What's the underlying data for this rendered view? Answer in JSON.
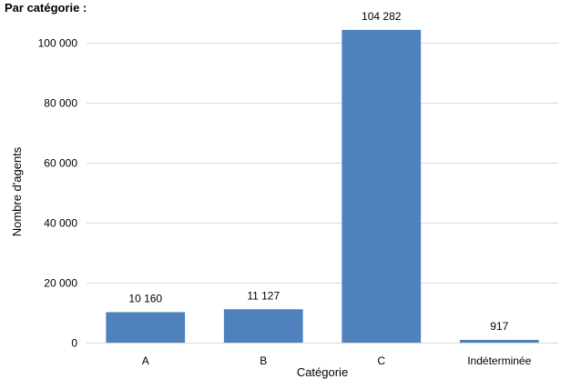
{
  "chart_data": {
    "type": "bar",
    "title": "Par catégorie :",
    "xlabel": "Catégorie",
    "ylabel": "Nombre d'agents",
    "categories": [
      "A",
      "B",
      "C",
      "Indéterminée"
    ],
    "values": [
      10160,
      11127,
      104282,
      917
    ],
    "data_labels": [
      "10 160",
      "11 127",
      "104 282",
      "917"
    ],
    "ylim": [
      0,
      110000
    ],
    "yticks": [
      0,
      20000,
      40000,
      60000,
      80000,
      100000
    ],
    "ytick_labels": [
      "0",
      "20 000",
      "40 000",
      "60 000",
      "80 000",
      "100 000"
    ],
    "grid": true,
    "legend": "none",
    "bar_color": "#4f81bd"
  }
}
